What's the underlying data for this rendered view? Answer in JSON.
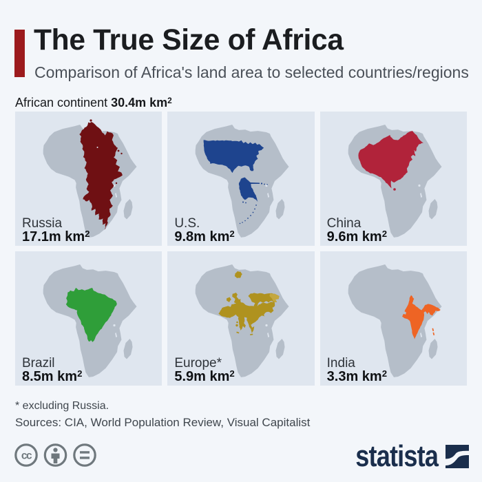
{
  "header": {
    "title": "The True Size of Africa",
    "subtitle": "Comparison of Africa's land area to selected countries/regions"
  },
  "continent": {
    "label": "African continent",
    "value": "30.4m km²"
  },
  "panels": [
    {
      "name": "Russia",
      "value": "17.1m km²",
      "color": "#6f1013"
    },
    {
      "name": "U.S.",
      "value": "9.8m km²",
      "color": "#1e448e"
    },
    {
      "name": "China",
      "value": "9.6m km²",
      "color": "#b1233a"
    },
    {
      "name": "Brazil",
      "value": "8.5m km²",
      "color": "#2f9e39"
    },
    {
      "name": "Europe*",
      "value": "5.9m km²",
      "color": "#af921f"
    },
    {
      "name": "India",
      "value": "3.3m km²",
      "color": "#ee6424"
    }
  ],
  "footer": {
    "footnote": "* excluding Russia.",
    "sources": "Sources: CIA, World Population Review, Visual Capitalist",
    "brand": "statista",
    "license_icons": [
      "cc-icon",
      "attribution-icon",
      "equals-icon"
    ],
    "icon_color": "#6f787d"
  },
  "colors": {
    "page_background": "#f3f6fa",
    "panel_background": "#dfe6ef",
    "africa_silhouette": "#b5bec9",
    "accent_bar": "#9c1a1d",
    "brand_navy": "#1a2e4c"
  },
  "chart_data": {
    "type": "table",
    "title": "The True Size of Africa",
    "subtitle": "Comparison of Africa's land area to selected countries/regions",
    "reference": {
      "label": "African continent",
      "value": 30.4
    },
    "categories": [
      "Russia",
      "U.S.",
      "China",
      "Brazil",
      "Europe*",
      "India"
    ],
    "values": [
      17.1,
      9.8,
      9.6,
      8.5,
      5.9,
      3.3
    ],
    "unit": "m km²",
    "footnote": "* excluding Russia.",
    "sources": "Sources: CIA, World Population Review, Visual Capitalist"
  }
}
